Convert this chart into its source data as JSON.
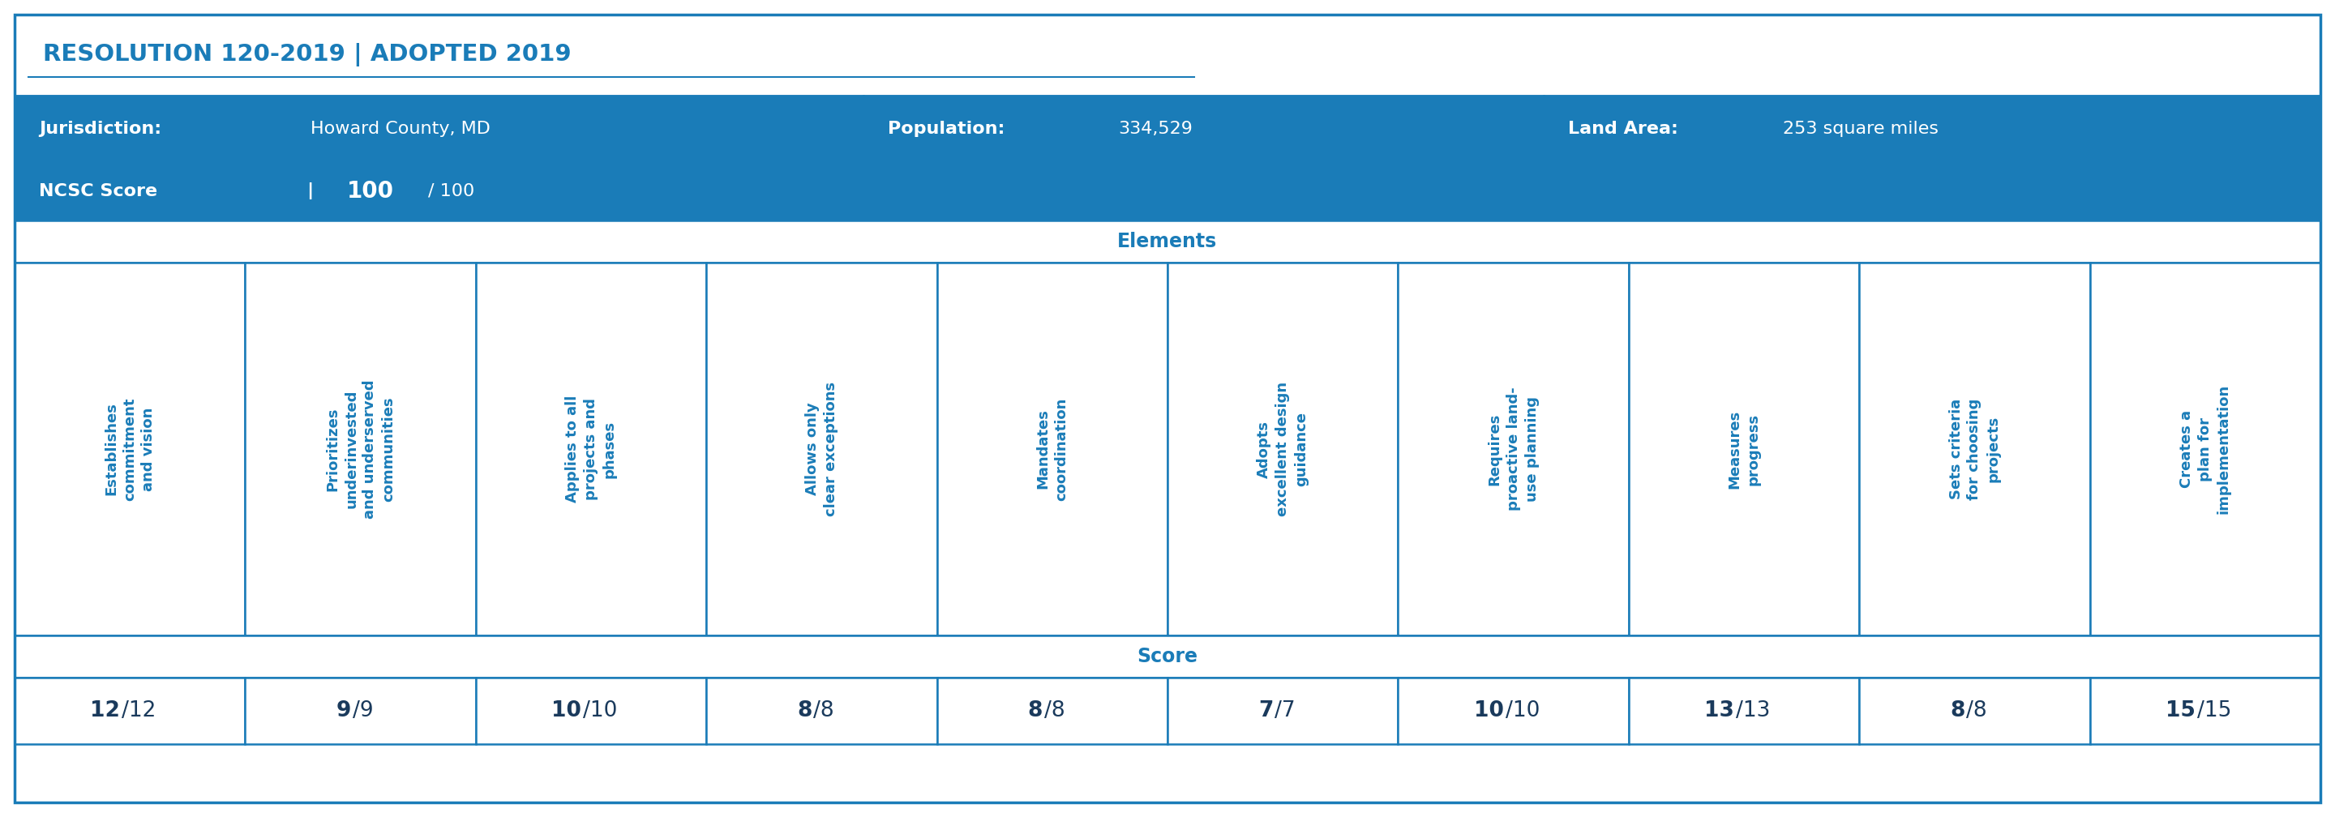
{
  "title": "RESOLUTION 120-2019 | ADOPTED 2019",
  "jurisdiction": "Howard County, MD",
  "population": "334,529",
  "land_area": "253 square miles",
  "ncsc_score": "100",
  "ncsc_total": "100",
  "elements_label": "Elements",
  "score_label": "Score",
  "columns": [
    "Establishes\ncommitment\nand vision",
    "Prioritizes\nunderinvested\nand underserved\ncommunities",
    "Applies to all\nprojects and\nphases",
    "Allows only\nclear exceptions",
    "Mandates\ncoordination",
    "Adopts\nexcellent design\nguidance",
    "Requires\nproactive land-\nuse planning",
    "Measures\nprogress",
    "Sets criteria\nfor choosing\nprojects",
    "Creates a\nplan for\nimplementation"
  ],
  "scores": [
    "12",
    "9",
    "10",
    "8",
    "8",
    "7",
    "10",
    "13",
    "8",
    "15"
  ],
  "totals": [
    "12",
    "9",
    "10",
    "8",
    "8",
    "7",
    "10",
    "13",
    "8",
    "15"
  ],
  "title_bg": "#ffffff",
  "title_text": "#1a7cb8",
  "header_bg": "#1a7cb8",
  "header_text": "#ffffff",
  "elements_bg": "#ffffff",
  "elements_text": "#1a7cb8",
  "score_bg": "#ffffff",
  "score_text": "#1a7cb8",
  "cell_bg": "#ffffff",
  "cell_text": "#1a7cb8",
  "border_color": "#1a7cb8",
  "score_bold_color": "#1a3a5c"
}
